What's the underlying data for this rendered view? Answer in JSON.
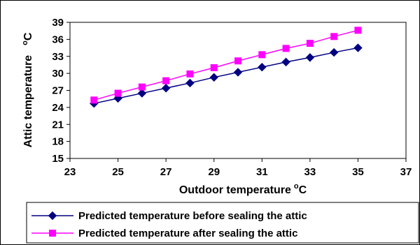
{
  "chart_data": {
    "type": "line",
    "xlabel": "Outdoor temperature",
    "xlabel_unit": "oC",
    "ylabel": "Attic temperature",
    "ylabel_unit": "oC",
    "xlim": [
      23,
      37
    ],
    "ylim": [
      15,
      39
    ],
    "x_ticks": [
      23,
      25,
      27,
      29,
      31,
      33,
      35,
      37
    ],
    "y_ticks": [
      15,
      18,
      21,
      24,
      27,
      30,
      33,
      36,
      39
    ],
    "grid": false,
    "legend_position": "bottom",
    "x": [
      24,
      25,
      26,
      27,
      28,
      29,
      30,
      31,
      32,
      33,
      34,
      35
    ],
    "series": [
      {
        "name": "Predicted temperature before sealing the attic",
        "color": "#000080",
        "marker": "diamond",
        "values": [
          24.7,
          25.6,
          26.5,
          27.4,
          28.3,
          29.3,
          30.2,
          31.1,
          32.0,
          32.8,
          33.7,
          34.5
        ]
      },
      {
        "name": "Predicted temperature after sealing the attic",
        "color": "#FF00FF",
        "marker": "square",
        "values": [
          25.3,
          26.5,
          27.6,
          28.7,
          29.9,
          31.0,
          32.2,
          33.3,
          34.4,
          35.3,
          36.5,
          37.6
        ]
      }
    ]
  }
}
